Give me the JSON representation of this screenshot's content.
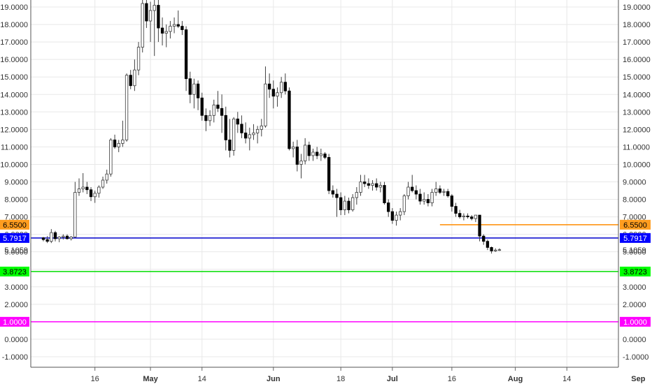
{
  "chart_data": {
    "type": "candlestick",
    "y_axis": {
      "ylim": [
        -1.6,
        19.4
      ],
      "ticks": [
        -1,
        0,
        1,
        2,
        3,
        4,
        5,
        6,
        7,
        8,
        9,
        10,
        11,
        12,
        13,
        14,
        15,
        16,
        17,
        18,
        19
      ],
      "tick_labels": [
        "-1.0000",
        "0.0000",
        "1.0000",
        "2.0000",
        "3.0000",
        "4.0000",
        "5.0000",
        "6.0000",
        "7.0000",
        "8.0000",
        "9.0000",
        "10.0000",
        "11.0000",
        "12.0000",
        "13.0000",
        "14.0000",
        "15.0000",
        "16.0000",
        "17.0000",
        "18.0000",
        "19.0000"
      ],
      "both_sides": true
    },
    "x_axis": {
      "range_days": [
        0,
        145
      ],
      "ticks": [
        {
          "day": 13,
          "label": "16",
          "month": false
        },
        {
          "day": 27,
          "label": "May",
          "month": true
        },
        {
          "day": 40,
          "label": "14",
          "month": false
        },
        {
          "day": 58,
          "label": "Jun",
          "month": true
        },
        {
          "day": 75,
          "label": "18",
          "month": false
        },
        {
          "day": 88,
          "label": "Jul",
          "month": true
        },
        {
          "day": 103,
          "label": "16",
          "month": false
        },
        {
          "day": 119,
          "label": "Aug",
          "month": true
        },
        {
          "day": 132,
          "label": "14",
          "month": false
        },
        {
          "day": 150,
          "label": "Sep",
          "month": true
        }
      ]
    },
    "grid": true,
    "colors": {
      "up": "#ffffff",
      "down": "#000000",
      "wick": "#404040",
      "grid": "#e8e8e8"
    },
    "levels": [
      {
        "value": 6.55,
        "label": "6.5500",
        "color": "#ff8c00",
        "from_day": 100,
        "fill": "#ff9d1f"
      },
      {
        "value": 5.7917,
        "label": "5.7917",
        "color": "#0000cc",
        "from_day": 0,
        "fill": "#0000ff"
      },
      {
        "value": 3.8723,
        "label": "3.8723",
        "color": "#00dd00",
        "from_day": 0,
        "fill": "#00ff00"
      },
      {
        "value": 1.0,
        "label": "1.0000",
        "color": "#ff00ff",
        "from_day": 0,
        "fill": "#ff00ff"
      }
    ],
    "last_price_label": "5.1059",
    "last_price_value": 5.1059,
    "candles": [
      [
        0,
        5.8,
        5.85,
        5.6,
        5.7
      ],
      [
        1,
        5.7,
        5.9,
        5.5,
        5.6
      ],
      [
        2,
        5.6,
        6.3,
        5.5,
        6.1
      ],
      [
        3,
        6.1,
        6.2,
        5.6,
        5.75
      ],
      [
        4,
        5.75,
        5.9,
        5.55,
        5.85
      ],
      [
        5,
        5.85,
        6.0,
        5.7,
        5.9
      ],
      [
        6,
        5.9,
        6.0,
        5.7,
        5.75
      ],
      [
        7,
        5.75,
        5.9,
        5.65,
        5.85
      ],
      [
        8,
        5.85,
        9.0,
        5.8,
        8.4
      ],
      [
        9,
        8.4,
        9.2,
        8.2,
        8.6
      ],
      [
        10,
        8.6,
        9.5,
        8.4,
        8.7
      ],
      [
        11,
        8.7,
        9.0,
        8.3,
        8.55
      ],
      [
        12,
        8.55,
        8.7,
        7.9,
        8.15
      ],
      [
        13,
        8.15,
        8.5,
        7.8,
        8.35
      ],
      [
        14,
        8.35,
        8.8,
        8.1,
        8.7
      ],
      [
        15,
        8.7,
        9.3,
        8.6,
        9.1
      ],
      [
        16,
        9.1,
        9.7,
        8.9,
        9.45
      ],
      [
        17,
        9.45,
        11.5,
        9.3,
        11.4
      ],
      [
        18,
        11.4,
        11.7,
        10.9,
        11.0
      ],
      [
        19,
        11.0,
        11.4,
        10.7,
        11.2
      ],
      [
        20,
        11.2,
        12.5,
        11.0,
        11.4
      ],
      [
        21,
        11.4,
        15.2,
        11.3,
        15.1
      ],
      [
        22,
        15.1,
        15.4,
        14.3,
        14.5
      ],
      [
        23,
        14.5,
        16.0,
        14.2,
        15.4
      ],
      [
        24,
        15.4,
        17.0,
        15.1,
        16.7
      ],
      [
        25,
        16.7,
        19.6,
        16.4,
        19.2
      ],
      [
        26,
        19.2,
        19.5,
        17.8,
        18.2
      ],
      [
        27,
        18.2,
        19.3,
        17.0,
        18.8
      ],
      [
        28,
        18.8,
        19.5,
        16.2,
        19.1
      ],
      [
        29,
        19.1,
        19.4,
        17.0,
        17.8
      ],
      [
        30,
        17.8,
        18.4,
        16.8,
        17.5
      ],
      [
        31,
        17.5,
        18.0,
        16.7,
        17.6
      ],
      [
        32,
        17.6,
        18.2,
        17.2,
        17.9
      ],
      [
        33,
        17.9,
        18.4,
        17.5,
        18.0
      ],
      [
        34,
        18.0,
        18.8,
        17.8,
        17.9
      ],
      [
        35,
        17.9,
        18.2,
        17.4,
        17.7
      ],
      [
        36,
        17.7,
        17.9,
        14.2,
        14.9
      ],
      [
        37,
        14.9,
        15.3,
        13.5,
        14.0
      ],
      [
        38,
        14.0,
        14.9,
        13.2,
        14.6
      ],
      [
        39,
        14.6,
        14.8,
        13.1,
        13.8
      ],
      [
        40,
        13.8,
        14.1,
        12.5,
        12.8
      ],
      [
        41,
        12.8,
        13.2,
        11.9,
        12.5
      ],
      [
        42,
        12.5,
        13.1,
        12.2,
        12.8
      ],
      [
        43,
        12.8,
        13.7,
        12.4,
        13.4
      ],
      [
        44,
        13.4,
        14.2,
        13.0,
        13.2
      ],
      [
        45,
        13.2,
        14.0,
        11.8,
        12.8
      ],
      [
        46,
        12.8,
        13.3,
        10.8,
        11.4
      ],
      [
        47,
        11.4,
        12.6,
        10.4,
        10.8
      ],
      [
        48,
        10.8,
        12.7,
        10.5,
        12.6
      ],
      [
        49,
        12.6,
        13.0,
        11.8,
        12.3
      ],
      [
        50,
        12.3,
        12.8,
        11.5,
        11.8
      ],
      [
        51,
        11.8,
        12.4,
        11.2,
        11.5
      ],
      [
        52,
        11.5,
        12.1,
        10.8,
        11.7
      ],
      [
        53,
        11.7,
        12.3,
        11.4,
        11.8
      ],
      [
        54,
        11.8,
        12.2,
        11.2,
        12.0
      ],
      [
        55,
        12.0,
        12.6,
        11.6,
        12.2
      ],
      [
        56,
        12.2,
        15.6,
        12.1,
        14.6
      ],
      [
        57,
        14.6,
        15.2,
        13.8,
        14.3
      ],
      [
        58,
        14.3,
        14.8,
        13.2,
        13.9
      ],
      [
        59,
        13.9,
        14.4,
        13.3,
        14.1
      ],
      [
        60,
        14.1,
        15.0,
        13.8,
        14.7
      ],
      [
        61,
        14.7,
        15.2,
        14.0,
        14.2
      ],
      [
        62,
        14.2,
        14.4,
        10.8,
        10.9
      ],
      [
        63,
        10.9,
        11.3,
        10.4,
        11.0
      ],
      [
        64,
        11.0,
        11.4,
        9.6,
        10.0
      ],
      [
        65,
        10.0,
        10.6,
        9.2,
        10.2
      ],
      [
        66,
        10.2,
        11.5,
        10.0,
        11.1
      ],
      [
        67,
        11.1,
        11.3,
        10.2,
        10.5
      ],
      [
        68,
        10.5,
        10.9,
        10.2,
        10.7
      ],
      [
        69,
        10.7,
        11.0,
        10.3,
        10.5
      ],
      [
        70,
        10.5,
        10.9,
        10.2,
        10.6
      ],
      [
        71,
        10.6,
        10.7,
        10.3,
        10.4
      ],
      [
        72,
        10.4,
        10.6,
        8.3,
        8.5
      ],
      [
        73,
        8.5,
        8.8,
        8.1,
        8.3
      ],
      [
        74,
        8.3,
        8.6,
        7.0,
        8.1
      ],
      [
        75,
        8.1,
        8.4,
        7.1,
        7.4
      ],
      [
        76,
        7.4,
        8.2,
        7.1,
        7.9
      ],
      [
        77,
        7.9,
        8.1,
        7.2,
        7.4
      ],
      [
        78,
        7.4,
        8.3,
        7.3,
        8.1
      ],
      [
        79,
        8.1,
        8.7,
        7.7,
        8.4
      ],
      [
        80,
        8.4,
        9.4,
        8.2,
        9.0
      ],
      [
        81,
        9.0,
        9.4,
        8.7,
        8.9
      ],
      [
        82,
        8.9,
        9.2,
        8.6,
        8.8
      ],
      [
        83,
        8.8,
        9.1,
        8.5,
        8.9
      ],
      [
        84,
        8.9,
        9.2,
        8.5,
        8.7
      ],
      [
        85,
        8.7,
        9.0,
        8.4,
        8.8
      ],
      [
        86,
        8.8,
        9.0,
        7.7,
        7.8
      ],
      [
        87,
        7.8,
        8.0,
        7.0,
        7.3
      ],
      [
        88,
        7.3,
        7.5,
        6.6,
        6.8
      ],
      [
        89,
        6.8,
        7.3,
        6.5,
        7.1
      ],
      [
        90,
        7.1,
        7.5,
        6.8,
        7.3
      ],
      [
        91,
        7.3,
        8.3,
        7.1,
        8.2
      ],
      [
        92,
        8.2,
        9.0,
        8.0,
        8.7
      ],
      [
        93,
        8.7,
        9.4,
        8.4,
        8.5
      ],
      [
        94,
        8.5,
        8.8,
        8.0,
        8.3
      ],
      [
        95,
        8.3,
        8.6,
        7.7,
        7.9
      ],
      [
        96,
        7.9,
        8.4,
        7.7,
        8.0
      ],
      [
        97,
        8.0,
        8.3,
        7.6,
        7.8
      ],
      [
        98,
        7.8,
        8.6,
        7.6,
        8.4
      ],
      [
        99,
        8.4,
        9.0,
        8.2,
        8.6
      ],
      [
        100,
        8.6,
        8.8,
        8.3,
        8.4
      ],
      [
        101,
        8.4,
        8.6,
        8.2,
        8.45
      ],
      [
        102,
        8.45,
        8.6,
        8.1,
        8.2
      ],
      [
        103,
        8.2,
        8.3,
        7.3,
        7.6
      ],
      [
        104,
        7.6,
        7.8,
        7.0,
        7.2
      ],
      [
        105,
        7.2,
        7.4,
        6.9,
        7.0
      ],
      [
        106,
        7.0,
        7.2,
        6.8,
        7.05
      ],
      [
        107,
        7.05,
        7.2,
        6.9,
        7.0
      ],
      [
        108,
        7.0,
        7.1,
        6.8,
        6.9
      ],
      [
        109,
        6.9,
        7.1,
        6.7,
        7.1
      ],
      [
        110,
        7.1,
        7.1,
        5.6,
        5.9
      ],
      [
        111,
        5.9,
        6.0,
        5.4,
        5.6
      ],
      [
        112,
        5.6,
        5.7,
        5.1,
        5.25
      ],
      [
        113,
        5.25,
        5.3,
        4.9,
        5.05
      ],
      [
        114,
        5.05,
        5.2,
        5.0,
        5.1
      ],
      [
        115,
        5.1,
        5.2,
        5.05,
        5.12
      ]
    ]
  }
}
